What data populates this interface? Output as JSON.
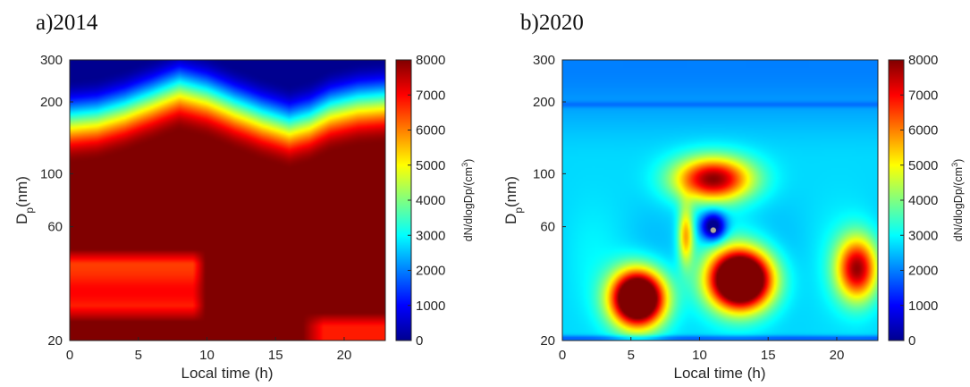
{
  "chart_data": [
    {
      "type": "heatmap",
      "title": "a)2014",
      "xlabel": "Local time (h)",
      "ylabel_main": "D",
      "ylabel_sub": "p",
      "ylabel_tail": "(nm)",
      "xlim": [
        0,
        23
      ],
      "ylim": [
        20,
        300
      ],
      "yscale": "log",
      "x_ticks": [
        0,
        5,
        10,
        15,
        20
      ],
      "y_ticks": [
        20,
        60,
        100,
        200,
        300
      ],
      "colorbar": {
        "label": "dN/dlogDp/(cm",
        "label_sup": "3",
        "label_tail": ")",
        "range": [
          0,
          8000
        ],
        "ticks": [
          0,
          1000,
          2000,
          3000,
          4000,
          5000,
          6000,
          7000,
          8000
        ],
        "colormap": "jet"
      },
      "features": {
        "saturated_top_edge_dp_by_hour": [
          {
            "x": 0,
            "dp": 110
          },
          {
            "x": 2,
            "dp": 113
          },
          {
            "x": 4,
            "dp": 122
          },
          {
            "x": 6,
            "dp": 135
          },
          {
            "x": 8,
            "dp": 150
          },
          {
            "x": 10,
            "dp": 140
          },
          {
            "x": 12,
            "dp": 125
          },
          {
            "x": 14,
            "dp": 113
          },
          {
            "x": 16,
            "dp": 104
          },
          {
            "x": 17.5,
            "dp": 110
          },
          {
            "x": 19,
            "dp": 122
          },
          {
            "x": 21,
            "dp": 130
          },
          {
            "x": 23,
            "dp": 133
          }
        ],
        "lower_concentration_regions": [
          {
            "x_range": [
              0,
              9.5
            ],
            "dp_range": [
              24,
              48
            ],
            "value": 6500
          },
          {
            "x_range": [
              17,
              23
            ],
            "dp_range": [
              20,
              26
            ],
            "value": 6800
          }
        ]
      }
    },
    {
      "type": "heatmap",
      "title": "b)2020",
      "xlabel": "Local time (h)",
      "ylabel_main": "D",
      "ylabel_sub": "p",
      "ylabel_tail": "(nm)",
      "xlim": [
        0,
        23
      ],
      "ylim": [
        20,
        300
      ],
      "yscale": "log",
      "x_ticks": [
        0,
        5,
        10,
        15,
        20
      ],
      "y_ticks": [
        20,
        60,
        100,
        200,
        300
      ],
      "colorbar": {
        "label": "dN/dlogDp/(cm",
        "label_sup": "3",
        "label_tail": ")",
        "range": [
          0,
          8000
        ],
        "ticks": [
          0,
          1000,
          2000,
          3000,
          4000,
          5000,
          6000,
          7000,
          8000
        ],
        "colormap": "jet"
      },
      "features": {
        "background_value": 2700,
        "high_concentration_regions": [
          {
            "x_center": 5.5,
            "dp_center": 30,
            "value": 8000
          },
          {
            "x_center": 13.0,
            "dp_center": 36,
            "value": 8000
          },
          {
            "x_center": 11.0,
            "dp_center": 95,
            "value": 6500
          },
          {
            "x_center": 21.5,
            "dp_center": 40,
            "value": 6500
          },
          {
            "x_center": 9.0,
            "dp_center": 55,
            "value": 5200
          }
        ],
        "marker_point": {
          "x": 11,
          "dp": 58
        }
      }
    }
  ]
}
